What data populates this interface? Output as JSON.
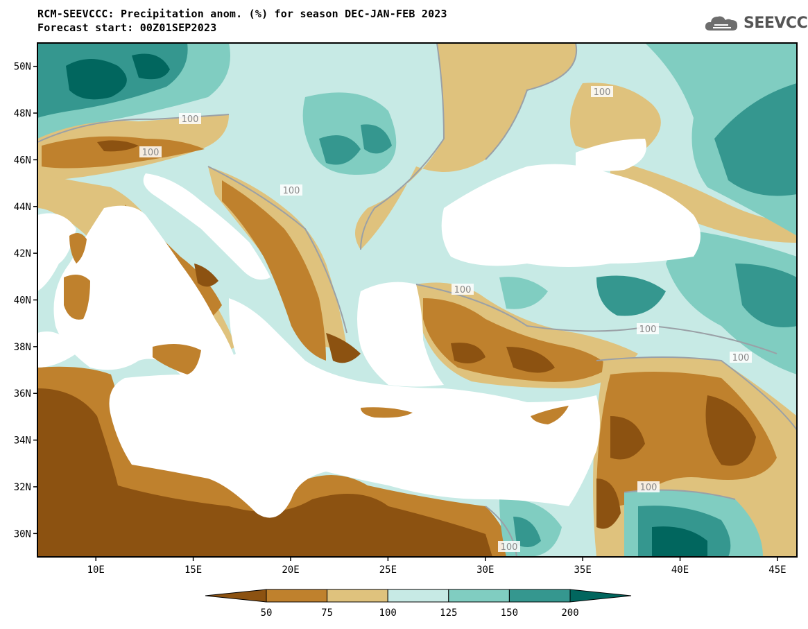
{
  "title": {
    "line1": "RCM-SEEVCCC: Precipitation anom. (%) for season DEC-JAN-FEB 2023",
    "line2": "Forecast start: 00Z01SEP2023"
  },
  "logo": {
    "text": "SEEVCCC",
    "icon": "cloud-icon"
  },
  "map_data": {
    "lon_range": [
      7,
      46
    ],
    "lat_range": [
      29,
      51
    ],
    "x_ticks": [
      "10E",
      "15E",
      "20E",
      "25E",
      "30E",
      "35E",
      "40E",
      "45E"
    ],
    "y_ticks": [
      "50N",
      "48N",
      "46N",
      "44N",
      "42N",
      "40N",
      "38N",
      "36N",
      "34N",
      "32N",
      "30N"
    ],
    "contour_labels": [
      "100",
      "100",
      "100",
      "100",
      "100",
      "100",
      "100",
      "100",
      "100"
    ],
    "colors": {
      "below_50": "#8c5211",
      "50_75": "#bf812d",
      "75_100": "#dfc27d",
      "100_125": "#c7eae5",
      "125_150": "#80cdc1",
      "150_200": "#35978f",
      "above_200": "#01665e",
      "sea": "#ffffff"
    }
  },
  "colorbar": {
    "labels": [
      "50",
      "75",
      "100",
      "125",
      "150",
      "200"
    ],
    "colors": [
      "#8c5211",
      "#bf812d",
      "#dfc27d",
      "#c7eae5",
      "#80cdc1",
      "#35978f",
      "#01665e"
    ]
  }
}
